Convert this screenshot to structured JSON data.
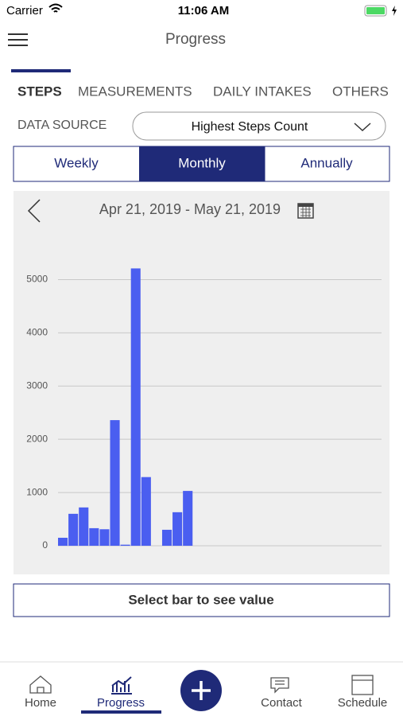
{
  "status_bar": {
    "carrier": "Carrier",
    "time": "11:06 AM"
  },
  "header": {
    "title": "Progress"
  },
  "tabs": [
    "STEPS",
    "MEASUREMENTS",
    "DAILY INTAKES",
    "OTHERS"
  ],
  "data_source": {
    "label": "DATA SOURCE",
    "selected": "Highest Steps Count"
  },
  "periods": [
    "Weekly",
    "Monthly",
    "Annually"
  ],
  "date_range": "Apr 21, 2019 - May 21, 2019",
  "chart_data": {
    "type": "bar",
    "categories": [
      null,
      null,
      null,
      null,
      null,
      null,
      null,
      null,
      null,
      null,
      null,
      null,
      null,
      null,
      null,
      null,
      null,
      null,
      null,
      null,
      null,
      null,
      null,
      null,
      null,
      null,
      null,
      null,
      null,
      null,
      null
    ],
    "values": [
      150,
      600,
      720,
      330,
      310,
      2360,
      20,
      5210,
      1290,
      0,
      300,
      630,
      1030,
      0,
      0,
      0,
      0,
      0,
      0,
      0,
      0,
      0,
      0,
      0,
      0,
      0,
      0,
      0,
      0,
      0,
      0
    ],
    "color": "#4a5ef0",
    "ylim": [
      0,
      5500
    ],
    "yticks": [
      0,
      1000,
      2000,
      3000,
      4000,
      5000
    ],
    "grid": true
  },
  "hint": "Select bar to see value",
  "nav": [
    "Home",
    "Progress",
    "Contact",
    "Schedule"
  ]
}
